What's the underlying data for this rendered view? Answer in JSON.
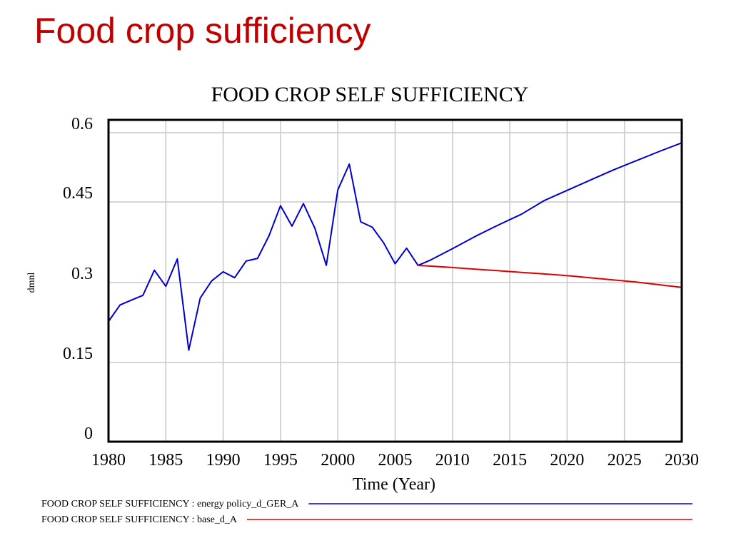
{
  "slide": {
    "title": "Food crop sufficiency"
  },
  "chart_data": {
    "type": "line",
    "title": "FOOD CROP SELF SUFFICIENCY",
    "xlabel": "Time (Year)",
    "ylabel": "dmnl",
    "xlim": [
      1980,
      2030
    ],
    "ylim": [
      0,
      0.6
    ],
    "x_ticks": [
      "1980",
      "1985",
      "1990",
      "1995",
      "2000",
      "2005",
      "2010",
      "2015",
      "2020",
      "2025",
      "2030"
    ],
    "y_ticks": [
      "0",
      "0.15",
      "0.3",
      "0.45",
      "0.6"
    ],
    "y_tick_values": [
      0,
      0.15,
      0.3,
      0.45,
      0.6
    ],
    "grid": true,
    "legend_placement": "bottom",
    "series": [
      {
        "name": "FOOD CROP SELF SUFFICIENCY : energy policy_d_GER_A",
        "color": "#0000cc",
        "x": [
          1980,
          1981,
          1982,
          1983,
          1984,
          1985,
          1986,
          1987,
          1988,
          1989,
          1990,
          1991,
          1992,
          1993,
          1994,
          1995,
          1996,
          1997,
          1998,
          1999,
          2000,
          2001,
          2002,
          2003,
          2004,
          2005,
          2006,
          2007,
          2008,
          2010,
          2012,
          2014,
          2016,
          2018,
          2020,
          2022,
          2024,
          2026,
          2028,
          2030
        ],
        "y": [
          0.227,
          0.258,
          0.267,
          0.276,
          0.323,
          0.293,
          0.344,
          0.173,
          0.271,
          0.303,
          0.32,
          0.309,
          0.34,
          0.345,
          0.387,
          0.443,
          0.405,
          0.447,
          0.401,
          0.332,
          0.476,
          0.532,
          0.413,
          0.403,
          0.374,
          0.335,
          0.364,
          0.332,
          0.341,
          0.363,
          0.386,
          0.407,
          0.427,
          0.453,
          0.475,
          0.497,
          0.519,
          0.539,
          0.559,
          0.578
        ]
      },
      {
        "name": "FOOD CROP SELF SUFFICIENCY : base_d_A",
        "color": "#dd0000",
        "x": [
          2007,
          2010,
          2012,
          2014,
          2016,
          2018,
          2020,
          2022,
          2024,
          2026,
          2028,
          2030
        ],
        "y": [
          0.332,
          0.328,
          0.325,
          0.322,
          0.319,
          0.316,
          0.313,
          0.309,
          0.305,
          0.301,
          0.296,
          0.291
        ]
      }
    ]
  }
}
